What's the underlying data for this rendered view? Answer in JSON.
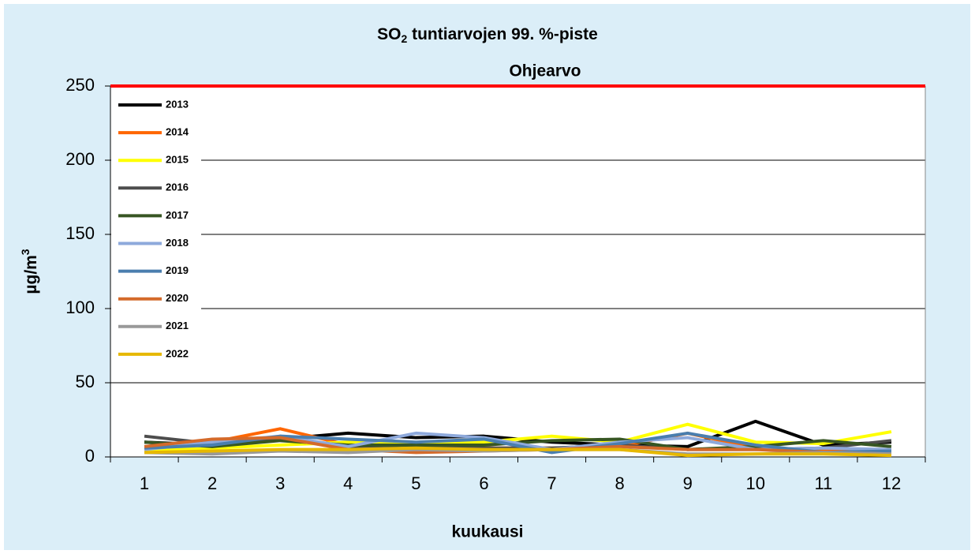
{
  "chart_data": {
    "type": "line",
    "title_parts": [
      "SO",
      "2",
      " tuntiarvojen 99. %-piste"
    ],
    "y_label_parts": [
      "µg/m",
      "3"
    ],
    "x_label": "kuukausi",
    "categories": [
      "1",
      "2",
      "3",
      "4",
      "5",
      "6",
      "7",
      "8",
      "9",
      "10",
      "11",
      "12"
    ],
    "ylim": [
      0,
      250
    ],
    "yticks": [
      0,
      50,
      100,
      150,
      200,
      250
    ],
    "grid": true,
    "legend": "top-left",
    "reference_line": {
      "label": "Ohjearvo",
      "value": 250,
      "color": "#ff0000"
    },
    "series": [
      {
        "name": "2013",
        "color": "#000000",
        "values": [
          10,
          8,
          12,
          16,
          13,
          14,
          10,
          8,
          7,
          24,
          8,
          10
        ]
      },
      {
        "name": "2014",
        "color": "#ff6600",
        "values": [
          5,
          10,
          19,
          8,
          8,
          6,
          6,
          7,
          16,
          6,
          4,
          5
        ]
      },
      {
        "name": "2015",
        "color": "#ffff00",
        "values": [
          4,
          6,
          8,
          10,
          9,
          10,
          14,
          10,
          22,
          10,
          9,
          17
        ]
      },
      {
        "name": "2016",
        "color": "#4d4d4d",
        "values": [
          14,
          9,
          12,
          7,
          8,
          6,
          6,
          8,
          5,
          5,
          6,
          11
        ]
      },
      {
        "name": "2017",
        "color": "#375623",
        "values": [
          10,
          7,
          11,
          8,
          8,
          8,
          11,
          12,
          5,
          7,
          11,
          7
        ]
      },
      {
        "name": "2018",
        "color": "#8ea9db",
        "values": [
          5,
          10,
          14,
          7,
          16,
          13,
          5,
          10,
          13,
          5,
          6,
          5
        ]
      },
      {
        "name": "2019",
        "color": "#4a7eae",
        "values": [
          6,
          8,
          14,
          12,
          10,
          12,
          3,
          9,
          16,
          8,
          3,
          4
        ]
      },
      {
        "name": "2020",
        "color": "#d46a2a",
        "values": [
          7,
          12,
          13,
          5,
          3,
          4,
          5,
          7,
          5,
          5,
          3,
          2
        ]
      },
      {
        "name": "2021",
        "color": "#999999",
        "values": [
          3,
          2,
          4,
          3,
          5,
          4,
          5,
          5,
          2,
          2,
          3,
          2
        ]
      },
      {
        "name": "2022",
        "color": "#e6b800",
        "values": [
          3,
          4,
          5,
          5,
          6,
          5,
          5,
          5,
          1,
          2,
          2,
          1
        ]
      }
    ]
  }
}
